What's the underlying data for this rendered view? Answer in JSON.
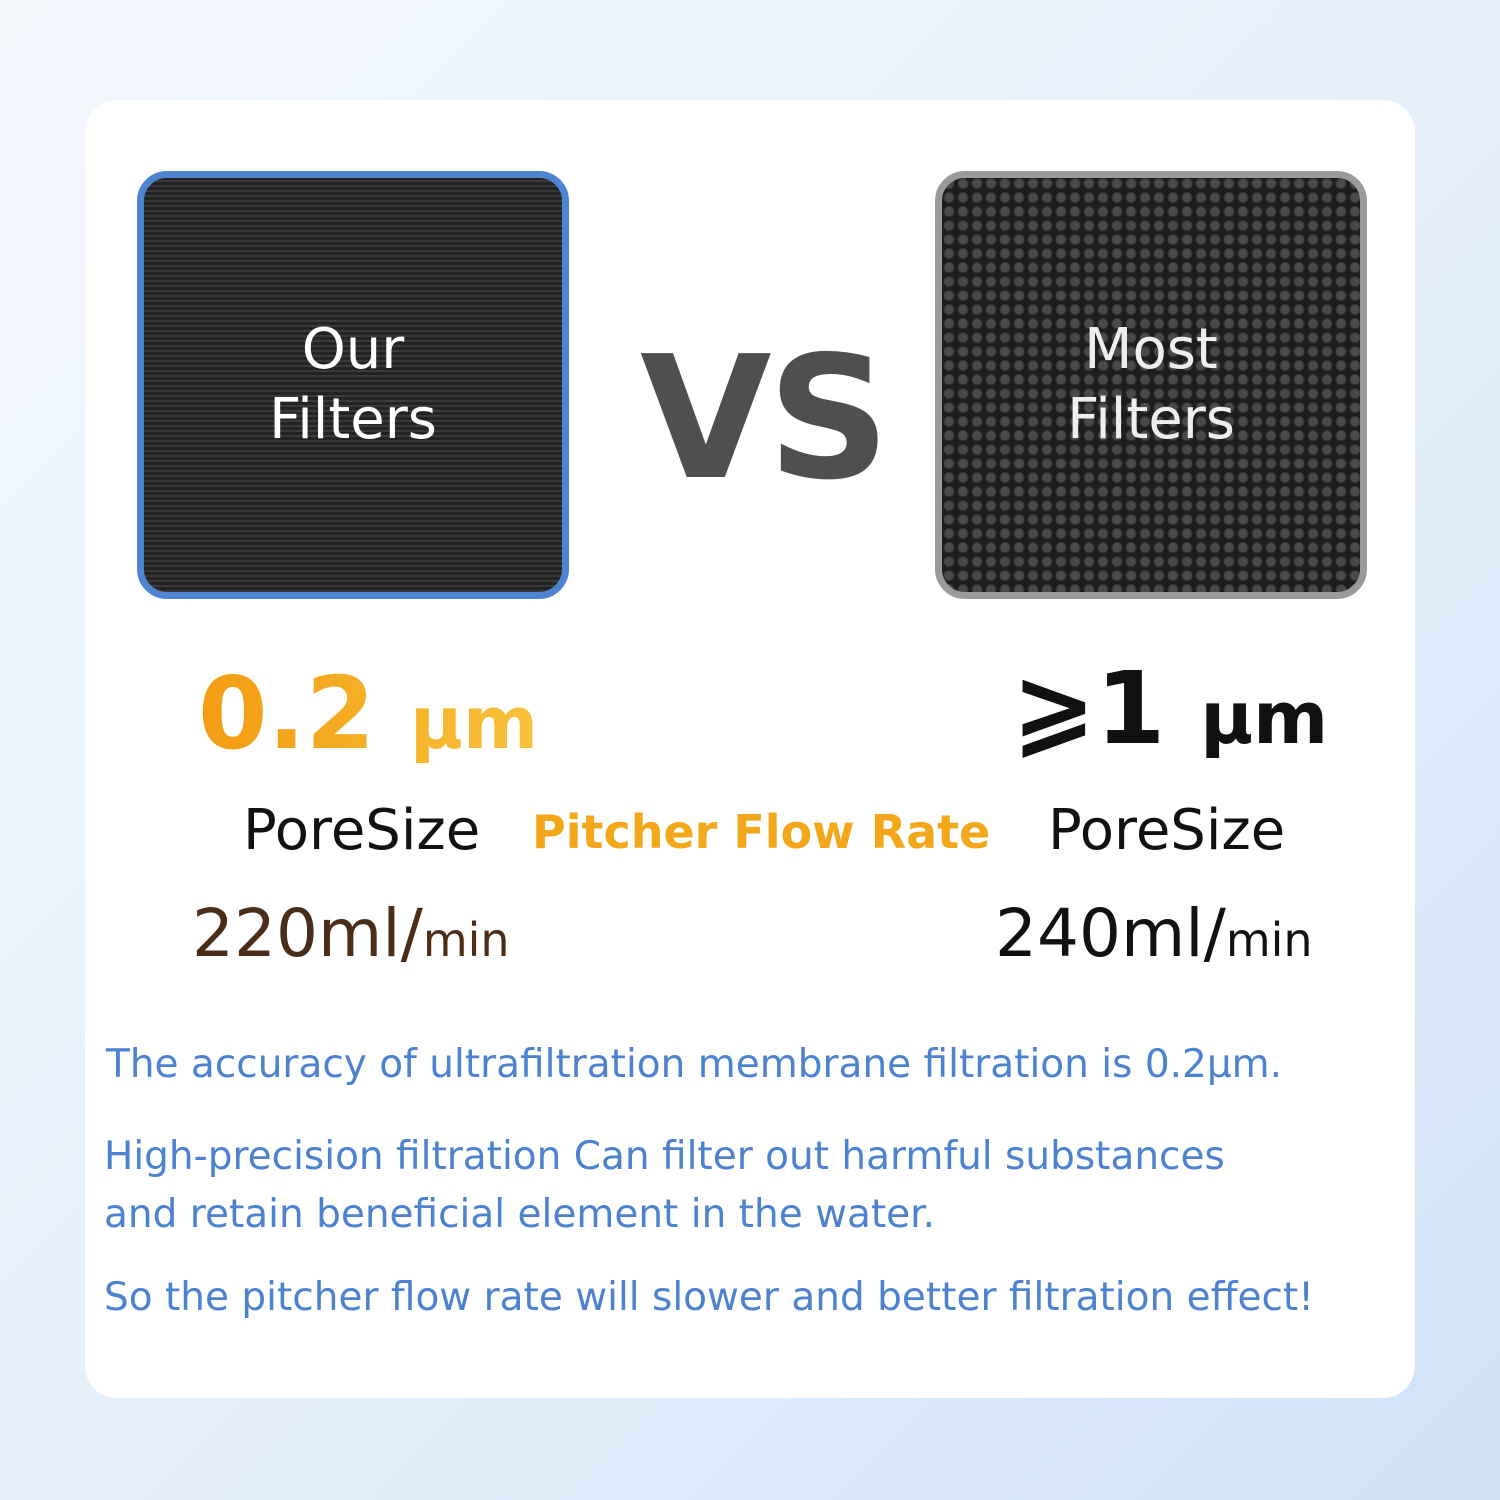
{
  "comparison": {
    "ours": {
      "label_line1": "Our",
      "label_line2": "Filters",
      "pore_value": "0.2",
      "pore_unit": "μm",
      "pore_label": "PoreSize",
      "flow_value": "220ml/",
      "flow_unit": "min",
      "border_color": "#4f84d2"
    },
    "vs": "VS",
    "most": {
      "label_line1": "Most",
      "label_line2": "Filters",
      "pore_value": "⩾1",
      "pore_unit": "μm",
      "pore_label": "PoreSize",
      "flow_value": "240ml/",
      "flow_unit": "min",
      "border_color": "#9a9a9a"
    },
    "middle_label": "Pitcher Flow Rate"
  },
  "notes": [
    "The accuracy of ultrafiltration membrane filtration is 0.2μm.",
    "High-precision filtration Can filter out harmful substances",
    "and retain beneficial element in the water.",
    "So the pitcher flow rate will slower and better filtration effect!"
  ],
  "colors": {
    "accent_orange": "#f3a81c",
    "text_blue": "#4d82d0",
    "brown": "#4a2e1a"
  }
}
